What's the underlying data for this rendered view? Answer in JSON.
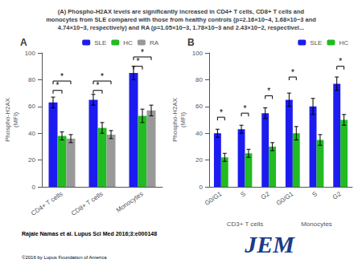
{
  "chart_data": [
    {
      "type": "bar",
      "title": "(A) Phospho-H2AX levels are significantly increased in CD4+ T cells, CD8+ T cells and\nmonocytes from SLE compared with those from healthy controls (p=2.16×10−4, 1.68×10−3 and\n4.74×10−3, respectively) and RA (p=1.05×10−3, 1.78×10−3 and 2.43×10−2, respectivel...",
      "subtitle": "A",
      "categories": [
        "CD4+ T cells",
        "CD8+ T cells",
        "Monocytes"
      ],
      "series": [
        {
          "name": "SLE",
          "color": "#1c1cf0",
          "values": [
            63,
            65,
            85
          ],
          "errors": [
            4,
            4,
            5
          ]
        },
        {
          "name": "HC",
          "color": "#22bb22",
          "values": [
            38,
            44,
            53
          ],
          "errors": [
            3,
            4,
            5
          ]
        },
        {
          "name": "RA",
          "color": "#999999",
          "values": [
            36,
            39,
            57
          ],
          "errors": [
            3,
            3,
            4
          ]
        }
      ],
      "ylabel": "Phospho-H2AX\n(MFI)",
      "ylim": [
        0,
        100
      ],
      "yticks": [
        0,
        20,
        40,
        60,
        80,
        100
      ],
      "grid": false,
      "legend": "upper right",
      "annotations": [
        {
          "text": "*",
          "category": "CD4+ T cells",
          "from": "SLE",
          "to": "HC",
          "y": 72
        },
        {
          "text": "*",
          "category": "CD4+ T cells",
          "from": "SLE",
          "to": "RA",
          "y": 79
        },
        {
          "text": "*",
          "category": "CD8+ T cells",
          "from": "SLE",
          "to": "HC",
          "y": 72
        },
        {
          "text": "*",
          "category": "CD8+ T cells",
          "from": "SLE",
          "to": "RA",
          "y": 79
        },
        {
          "text": "*",
          "category": "Monocytes",
          "from": "SLE",
          "to": "HC",
          "y": 90
        },
        {
          "text": "*",
          "category": "Monocytes",
          "from": "SLE",
          "to": "RA",
          "y": 97
        },
        {
          "text": "Rajaie Namas et al. Lupus Sci Med 2016;3:e000148"
        },
        {
          "text": "©2016 by Lupus Foundation of America"
        },
        {
          "text": "JEM",
          "color": "#1a3a8a"
        }
      ]
    },
    {
      "type": "bar",
      "subtitle": "B",
      "categories": [
        "G0/G1",
        "S",
        "G2",
        "G0/G1",
        "S",
        "G2"
      ],
      "group_labels": [
        "CD3+ T cells",
        "Monocytes"
      ],
      "series": [
        {
          "name": "SLE",
          "color": "#1c1cf0",
          "values": [
            40,
            43,
            55,
            65,
            60,
            77
          ],
          "errors": [
            3,
            3,
            4,
            5,
            6,
            5
          ]
        },
        {
          "name": "HC",
          "color": "#22bb22",
          "values": [
            22,
            25,
            30,
            40,
            35,
            50
          ],
          "errors": [
            3,
            3,
            3,
            5,
            4,
            4
          ]
        }
      ],
      "ylabel": "Phospho-H2AX\n(MFI)",
      "ylim": [
        0,
        100
      ],
      "yticks": [
        0,
        20,
        40,
        60,
        80,
        100
      ],
      "grid": false,
      "legend": "upper right",
      "annotations": [
        {
          "text": "*",
          "group": "CD3+ T cells",
          "category": "G0/G1",
          "from": "SLE",
          "to": "HC",
          "y": 52
        },
        {
          "text": "*",
          "group": "CD3+ T cells",
          "category": "S",
          "from": "SLE",
          "to": "HC",
          "y": 55
        },
        {
          "text": "*",
          "group": "CD3+ T cells",
          "category": "G2",
          "from": "SLE",
          "to": "HC",
          "y": 68
        },
        {
          "text": "*",
          "group": "Monocytes",
          "category": "G0/G1",
          "from": "SLE",
          "to": "HC",
          "y": 82
        },
        {
          "text": "*",
          "group": "Monocytes",
          "category": "G2",
          "from": "SLE",
          "to": "HC",
          "y": 90
        }
      ]
    }
  ]
}
